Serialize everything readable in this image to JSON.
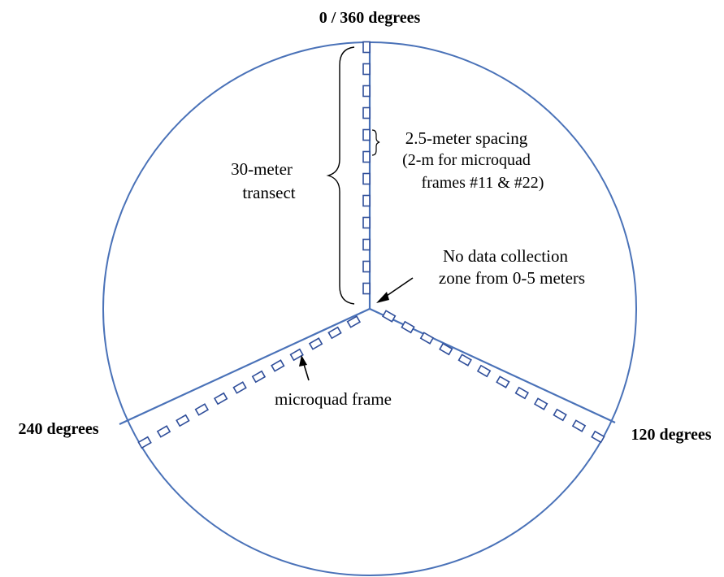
{
  "labels": {
    "top": "0 / 360 degrees",
    "right": "120 degrees",
    "left": "240 degrees",
    "transect_line1": "30-meter",
    "transect_line2": "transect",
    "spacing_line1": "2.5-meter spacing",
    "spacing_line2": "(2-m for microquad",
    "spacing_line3": "frames #11 & #22)",
    "nodata_line1": "No data collection",
    "nodata_line2": "zone from 0-5 meters",
    "microquad": "microquad frame"
  },
  "colors": {
    "circle": "#4a72b8",
    "frame": "#2f4e9a",
    "text": "#000000"
  },
  "transects": [
    {
      "angle_degrees": 0,
      "frame_count": 12
    },
    {
      "angle_degrees": 120,
      "frame_count": 12
    },
    {
      "angle_degrees": 240,
      "frame_count": 12
    }
  ]
}
